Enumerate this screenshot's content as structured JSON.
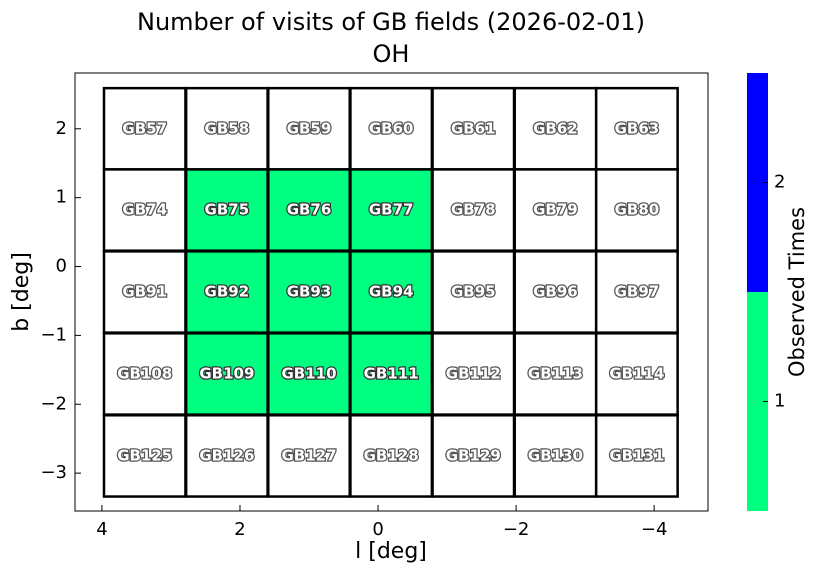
{
  "chart_data": {
    "type": "heatmap",
    "title": "Number of visits of GB fields (2026-02-01)",
    "subtitle": "OH",
    "xlabel": "l [deg]",
    "ylabel": "b [deg]",
    "colorbar_label": "Observed Times",
    "xlim": [
      4.39,
      -4.78
    ],
    "ylim": [
      -3.55,
      2.81
    ],
    "xticks": [
      4,
      2,
      0,
      {
        "value": -2,
        "label": "−2"
      },
      {
        "value": -4,
        "label": "−4"
      }
    ],
    "yticks": [
      {
        "value": -3,
        "label": "−3"
      },
      {
        "value": -2,
        "label": "−2"
      },
      {
        "value": -1,
        "label": "−1"
      },
      0,
      1,
      2
    ],
    "names": [
      "GB57",
      "GB58",
      "GB59",
      "GB60",
      "GB61",
      "GB62",
      "GB63",
      "GB74",
      "GB75",
      "GB76",
      "GB77",
      "GB78",
      "GB79",
      "GB80",
      "GB91",
      "GB92",
      "GB93",
      "GB94",
      "GB95",
      "GB96",
      "GB97",
      "GB108",
      "GB109",
      "GB110",
      "GB111",
      "GB112",
      "GB113",
      "GB114",
      "GB125",
      "GB126",
      "GB127",
      "GB128",
      "GB129",
      "GB130",
      "GB131"
    ],
    "l": [
      3.38,
      2.19,
      1.0,
      -0.19,
      -1.38,
      -2.57,
      -3.75,
      3.38,
      2.19,
      1.0,
      -0.19,
      -1.38,
      -2.57,
      -3.75,
      3.38,
      2.19,
      1.0,
      -0.19,
      -1.38,
      -2.57,
      -3.75,
      3.38,
      2.19,
      1.0,
      -0.19,
      -1.38,
      -2.57,
      -3.75,
      3.38,
      2.19,
      1.0,
      -0.19,
      -1.38,
      -2.57,
      -3.75
    ],
    "b": [
      2.0,
      2.0,
      2.0,
      2.0,
      2.0,
      2.0,
      2.0,
      0.82,
      0.82,
      0.82,
      0.82,
      0.82,
      0.82,
      0.82,
      -0.37,
      -0.37,
      -0.37,
      -0.37,
      -0.37,
      -0.37,
      -0.37,
      -1.56,
      -1.56,
      -1.56,
      -1.56,
      -1.56,
      -1.56,
      -1.56,
      -2.75,
      -2.75,
      -2.75,
      -2.75,
      -2.75,
      -2.75,
      -2.75
    ],
    "values": [
      0,
      0,
      0,
      0,
      0,
      0,
      0,
      0,
      1,
      1,
      1,
      0,
      0,
      0,
      0,
      1,
      1,
      1,
      0,
      0,
      0,
      0,
      1,
      1,
      1,
      0,
      0,
      0,
      0,
      0,
      0,
      0,
      0,
      0,
      0
    ],
    "color_bins": [
      0.5,
      1.5,
      2.5
    ],
    "colors": [
      "#00ff80",
      "#0000ff"
    ],
    "clim": [
      0.5,
      2.5
    ],
    "cticks": [
      1,
      2
    ]
  }
}
